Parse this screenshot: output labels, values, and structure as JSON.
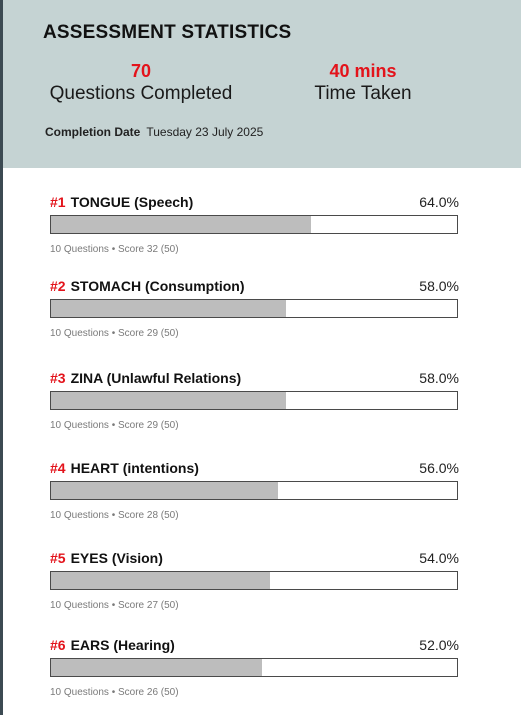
{
  "header": {
    "title": "ASSESSMENT STATISTICS",
    "stats": [
      {
        "value": "70",
        "label": "Questions Completed"
      },
      {
        "value": "40 mins",
        "label": "Time Taken"
      }
    ],
    "completion_label": "Completion Date",
    "completion_value": "Tuesday 23 July 2025"
  },
  "rows": [
    {
      "rank": "#1",
      "name": "TONGUE (Speech)",
      "percent": "64.0%",
      "fraction": 0.64,
      "meta": "10 Questions • Score 32 (50)"
    },
    {
      "rank": "#2",
      "name": "STOMACH (Consumption)",
      "percent": "58.0%",
      "fraction": 0.58,
      "meta": "10 Questions • Score 29 (50)"
    },
    {
      "rank": "#3",
      "name": "ZINA (Unlawful Relations)",
      "percent": "58.0%",
      "fraction": 0.58,
      "meta": "10 Questions • Score 29 (50)"
    },
    {
      "rank": "#4",
      "name": "HEART (intentions)",
      "percent": "56.0%",
      "fraction": 0.56,
      "meta": "10 Questions • Score 28 (50)"
    },
    {
      "rank": "#5",
      "name": "EYES (Vision)",
      "percent": "54.0%",
      "fraction": 0.54,
      "meta": "10 Questions • Score 27 (50)"
    },
    {
      "rank": "#6",
      "name": "EARS (Hearing)",
      "percent": "52.0%",
      "fraction": 0.52,
      "meta": "10 Questions • Score 26 (50)"
    }
  ],
  "colors": {
    "header_bg": "#c5d3d3",
    "accent": "#e3131b",
    "bar_fill": "#bdbdbd"
  }
}
